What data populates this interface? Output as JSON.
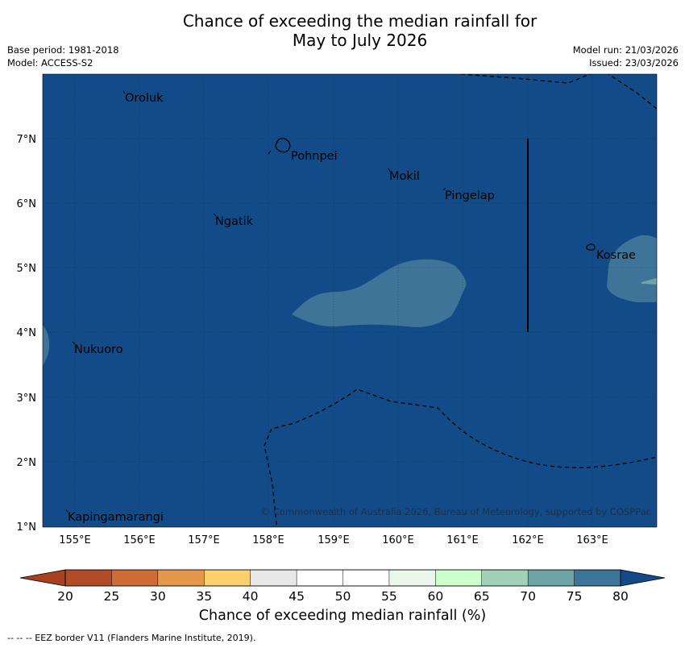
{
  "title": {
    "line1": "Chance of exceeding the median rainfall for",
    "line2": "May to July 2026"
  },
  "meta": {
    "base_period": "Base period: 1981-2018",
    "model": "Model: ACCESS-S2",
    "model_run": "Model run: 21/03/2026",
    "issued": "Issued: 23/03/2026"
  },
  "map": {
    "lat_range": [
      1.0,
      8.0
    ],
    "lon_range": [
      154.5,
      164.0
    ],
    "y_ticks": [
      "7°N",
      "6°N",
      "5°N",
      "4°N",
      "3°N",
      "2°N",
      "1°N"
    ],
    "x_ticks": [
      "155°E",
      "156°E",
      "157°E",
      "158°E",
      "159°E",
      "160°E",
      "161°E",
      "162°E",
      "163°E"
    ],
    "places": [
      {
        "name": "Oroluk",
        "lon": 155.75,
        "lat": 7.6
      },
      {
        "name": "Pohnpei",
        "lon": 158.35,
        "lat": 6.8
      },
      {
        "name": "Mokil",
        "lon": 159.85,
        "lat": 6.4
      },
      {
        "name": "Pingelap",
        "lon": 160.75,
        "lat": 6.15
      },
      {
        "name": "Ngatik",
        "lon": 157.15,
        "lat": 5.75
      },
      {
        "name": "Kosrae",
        "lon": 163.0,
        "lat": 5.2
      },
      {
        "name": "Nukuoro",
        "lon": 155.0,
        "lat": 3.75
      },
      {
        "name": "Kapingamarangi",
        "lon": 154.9,
        "lat": 1.15
      }
    ],
    "copyright": "© Commonwealth of Australia 2026, Bureau of Meteorology, supported by COSPPac",
    "colors": {
      "ocean_bg": "#124b87",
      "region_75": "#3e7497"
    }
  },
  "colorbar": {
    "ticks": [
      "20",
      "25",
      "30",
      "35",
      "40",
      "45",
      "50",
      "55",
      "60",
      "65",
      "70",
      "75",
      "80"
    ],
    "colors": [
      "#b14b28",
      "#cf6b36",
      "#e5984b",
      "#fdd06e",
      "#e8e8e8",
      "#ffffff",
      "#ffffff",
      "#ebf7eb",
      "#ccffcc",
      "#a1d1b9",
      "#6fa4a6",
      "#3e7497",
      "#124b87"
    ],
    "label": "Chance of exceeding median rainfall (%)"
  },
  "footnote": "-- -- -- EEZ border V11 (Flanders Marine Institute, 2019)."
}
